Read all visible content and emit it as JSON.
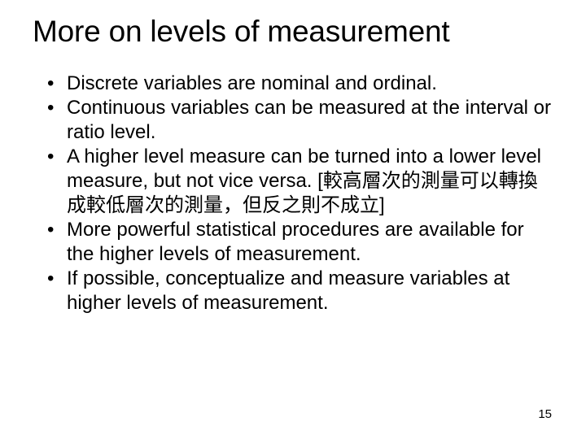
{
  "slide": {
    "title": "More on levels of measurement",
    "bullets": [
      "Discrete variables are nominal and ordinal.",
      "Continuous variables can be measured at the interval or ratio level.",
      "A higher level measure can be turned into a lower level measure, but not vice versa. [較高層次的測量可以轉換成較低層次的測量，但反之則不成立]",
      "More powerful statistical procedures are available for the higher levels of measurement.",
      "If possible, conceptualize and measure variables at higher levels of measurement."
    ],
    "page_number": "15",
    "title_fontsize": 37,
    "body_fontsize": 24,
    "pagenum_fontsize": 15,
    "text_color": "#000000",
    "background_color": "#ffffff"
  }
}
